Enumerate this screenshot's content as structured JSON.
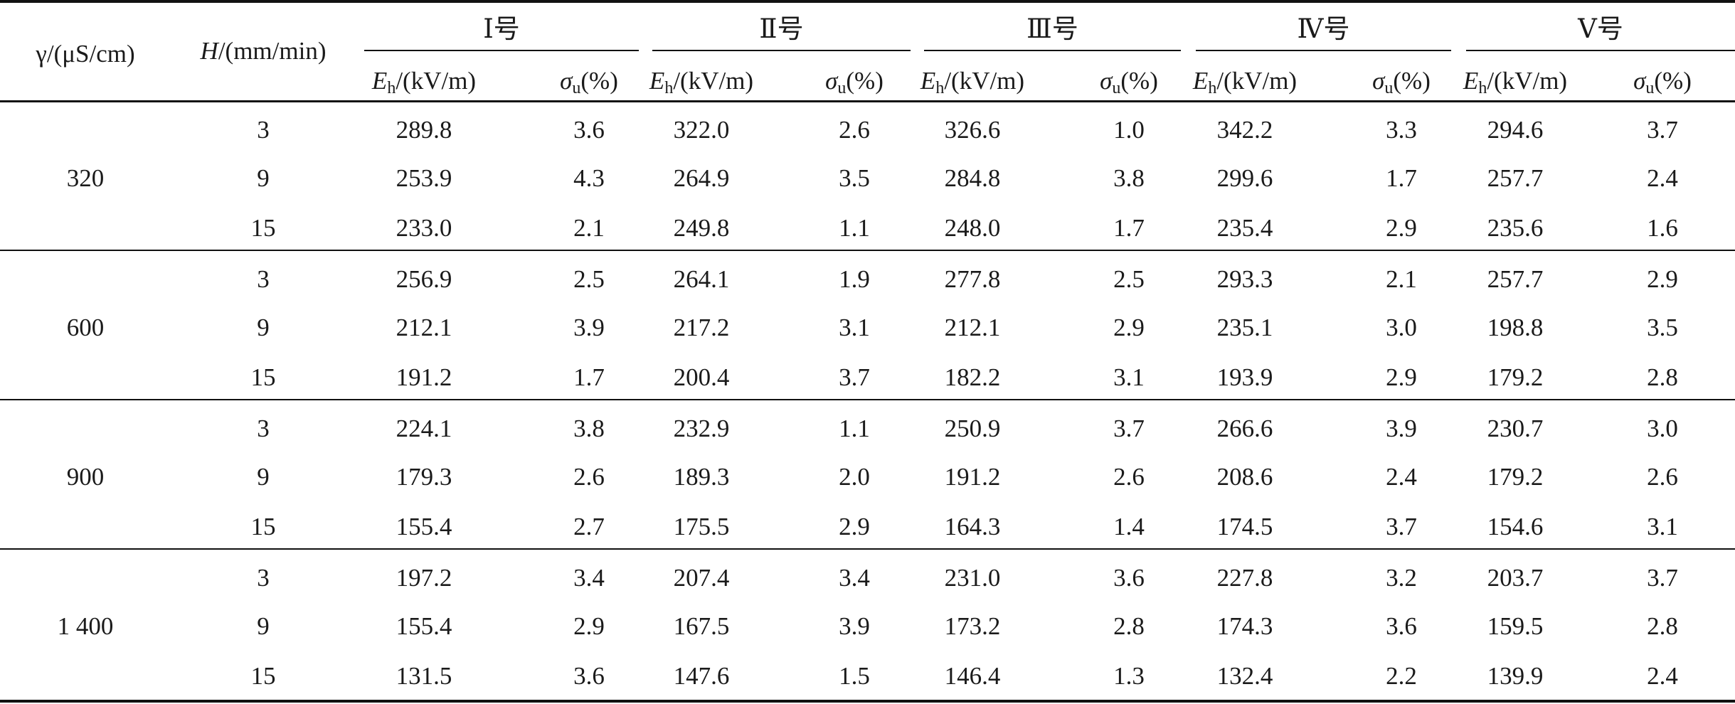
{
  "table": {
    "header": {
      "gamma_col": "γ/(μS/cm)",
      "h_col": {
        "italic": "H",
        "rest": "/(mm/min)"
      },
      "groups": [
        "Ⅰ号",
        "Ⅱ号",
        "Ⅲ号",
        "Ⅳ号",
        "Ⅴ号"
      ],
      "sub_e": {
        "italic": "E",
        "sub": "h",
        "rest": "/(kV/m)"
      },
      "sub_sigma": {
        "italic": "σ",
        "sub": "u",
        "rest": "(%)"
      }
    },
    "blocks": [
      {
        "gamma": "320",
        "rows": [
          {
            "h": "3",
            "values": [
              "289.8",
              "3.6",
              "322.0",
              "2.6",
              "326.6",
              "1.0",
              "342.2",
              "3.3",
              "294.6",
              "3.7"
            ]
          },
          {
            "h": "9",
            "values": [
              "253.9",
              "4.3",
              "264.9",
              "3.5",
              "284.8",
              "3.8",
              "299.6",
              "1.7",
              "257.7",
              "2.4"
            ]
          },
          {
            "h": "15",
            "values": [
              "233.0",
              "2.1",
              "249.8",
              "1.1",
              "248.0",
              "1.7",
              "235.4",
              "2.9",
              "235.6",
              "1.6"
            ]
          }
        ]
      },
      {
        "gamma": "600",
        "rows": [
          {
            "h": "3",
            "values": [
              "256.9",
              "2.5",
              "264.1",
              "1.9",
              "277.8",
              "2.5",
              "293.3",
              "2.1",
              "257.7",
              "2.9"
            ]
          },
          {
            "h": "9",
            "values": [
              "212.1",
              "3.9",
              "217.2",
              "3.1",
              "212.1",
              "2.9",
              "235.1",
              "3.0",
              "198.8",
              "3.5"
            ]
          },
          {
            "h": "15",
            "values": [
              "191.2",
              "1.7",
              "200.4",
              "3.7",
              "182.2",
              "3.1",
              "193.9",
              "2.9",
              "179.2",
              "2.8"
            ]
          }
        ]
      },
      {
        "gamma": "900",
        "rows": [
          {
            "h": "3",
            "values": [
              "224.1",
              "3.8",
              "232.9",
              "1.1",
              "250.9",
              "3.7",
              "266.6",
              "3.9",
              "230.7",
              "3.0"
            ]
          },
          {
            "h": "9",
            "values": [
              "179.3",
              "2.6",
              "189.3",
              "2.0",
              "191.2",
              "2.6",
              "208.6",
              "2.4",
              "179.2",
              "2.6"
            ]
          },
          {
            "h": "15",
            "values": [
              "155.4",
              "2.7",
              "175.5",
              "2.9",
              "164.3",
              "1.4",
              "174.5",
              "3.7",
              "154.6",
              "3.1"
            ]
          }
        ]
      },
      {
        "gamma": "1 400",
        "rows": [
          {
            "h": "3",
            "values": [
              "197.2",
              "3.4",
              "207.4",
              "3.4",
              "231.0",
              "3.6",
              "227.8",
              "3.2",
              "203.7",
              "3.7"
            ]
          },
          {
            "h": "9",
            "values": [
              "155.4",
              "2.9",
              "167.5",
              "3.9",
              "173.2",
              "2.8",
              "174.3",
              "3.6",
              "159.5",
              "2.8"
            ]
          },
          {
            "h": "15",
            "values": [
              "131.5",
              "3.6",
              "147.6",
              "1.5",
              "146.4",
              "1.3",
              "132.4",
              "2.2",
              "139.9",
              "2.4"
            ]
          }
        ]
      }
    ]
  }
}
